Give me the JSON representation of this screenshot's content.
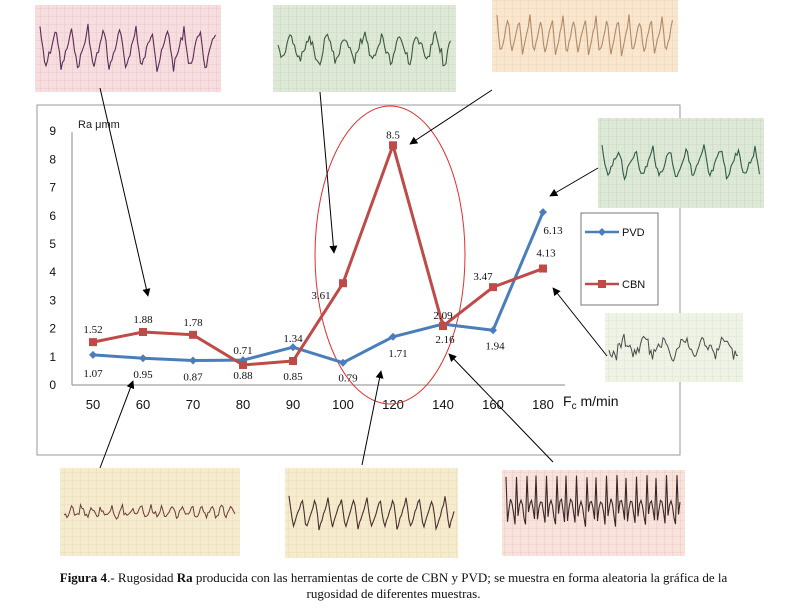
{
  "chart_data": {
    "type": "line",
    "title": "",
    "ylabel": "Ra μmm",
    "xlabel_prefix": "F",
    "xlabel_sub": "c",
    "xlabel_suffix": " m/min",
    "categories": [
      "50",
      "60",
      "70",
      "80",
      "90",
      "100",
      "120",
      "140",
      "160",
      "180"
    ],
    "ylim": [
      0,
      9
    ],
    "yticks": [
      "0",
      "1",
      "2",
      "3",
      "4",
      "5",
      "6",
      "7",
      "8",
      "9"
    ],
    "grid": false,
    "legend_position": "right",
    "series": [
      {
        "name": "PVD",
        "color": "#4a7ebb",
        "marker": "diamond",
        "values": [
          1.07,
          0.95,
          0.87,
          0.88,
          1.34,
          0.79,
          1.71,
          2.16,
          1.94,
          6.13
        ],
        "labels": [
          "1.07",
          "0.95",
          "0.87",
          "0.88",
          "1.34",
          "0.79",
          "1.71",
          "2.16",
          "1.94",
          "6.13"
        ]
      },
      {
        "name": "CBN",
        "color": "#be4b48",
        "marker": "square",
        "values": [
          1.52,
          1.88,
          1.78,
          0.71,
          0.85,
          3.61,
          8.5,
          2.09,
          3.47,
          4.13
        ],
        "labels": [
          "1.52",
          "1.88",
          "1.78",
          "0.71",
          "0.85",
          "3.61",
          "8.5",
          "2.09",
          "3.47",
          "4.13"
        ]
      }
    ]
  },
  "figure": {
    "caption_bold_prefix": "Figura 4",
    "caption_text1": ".- Rugosidad ",
    "caption_bold_ra": "Ra",
    "caption_text2": " producida con las  herramientas de corte de CBN y PVD; se muestra en forma aleatoria la gráfica de la",
    "caption_line2": "rugosidad de diferentes muestras.",
    "highlight_color": "#e03030"
  }
}
